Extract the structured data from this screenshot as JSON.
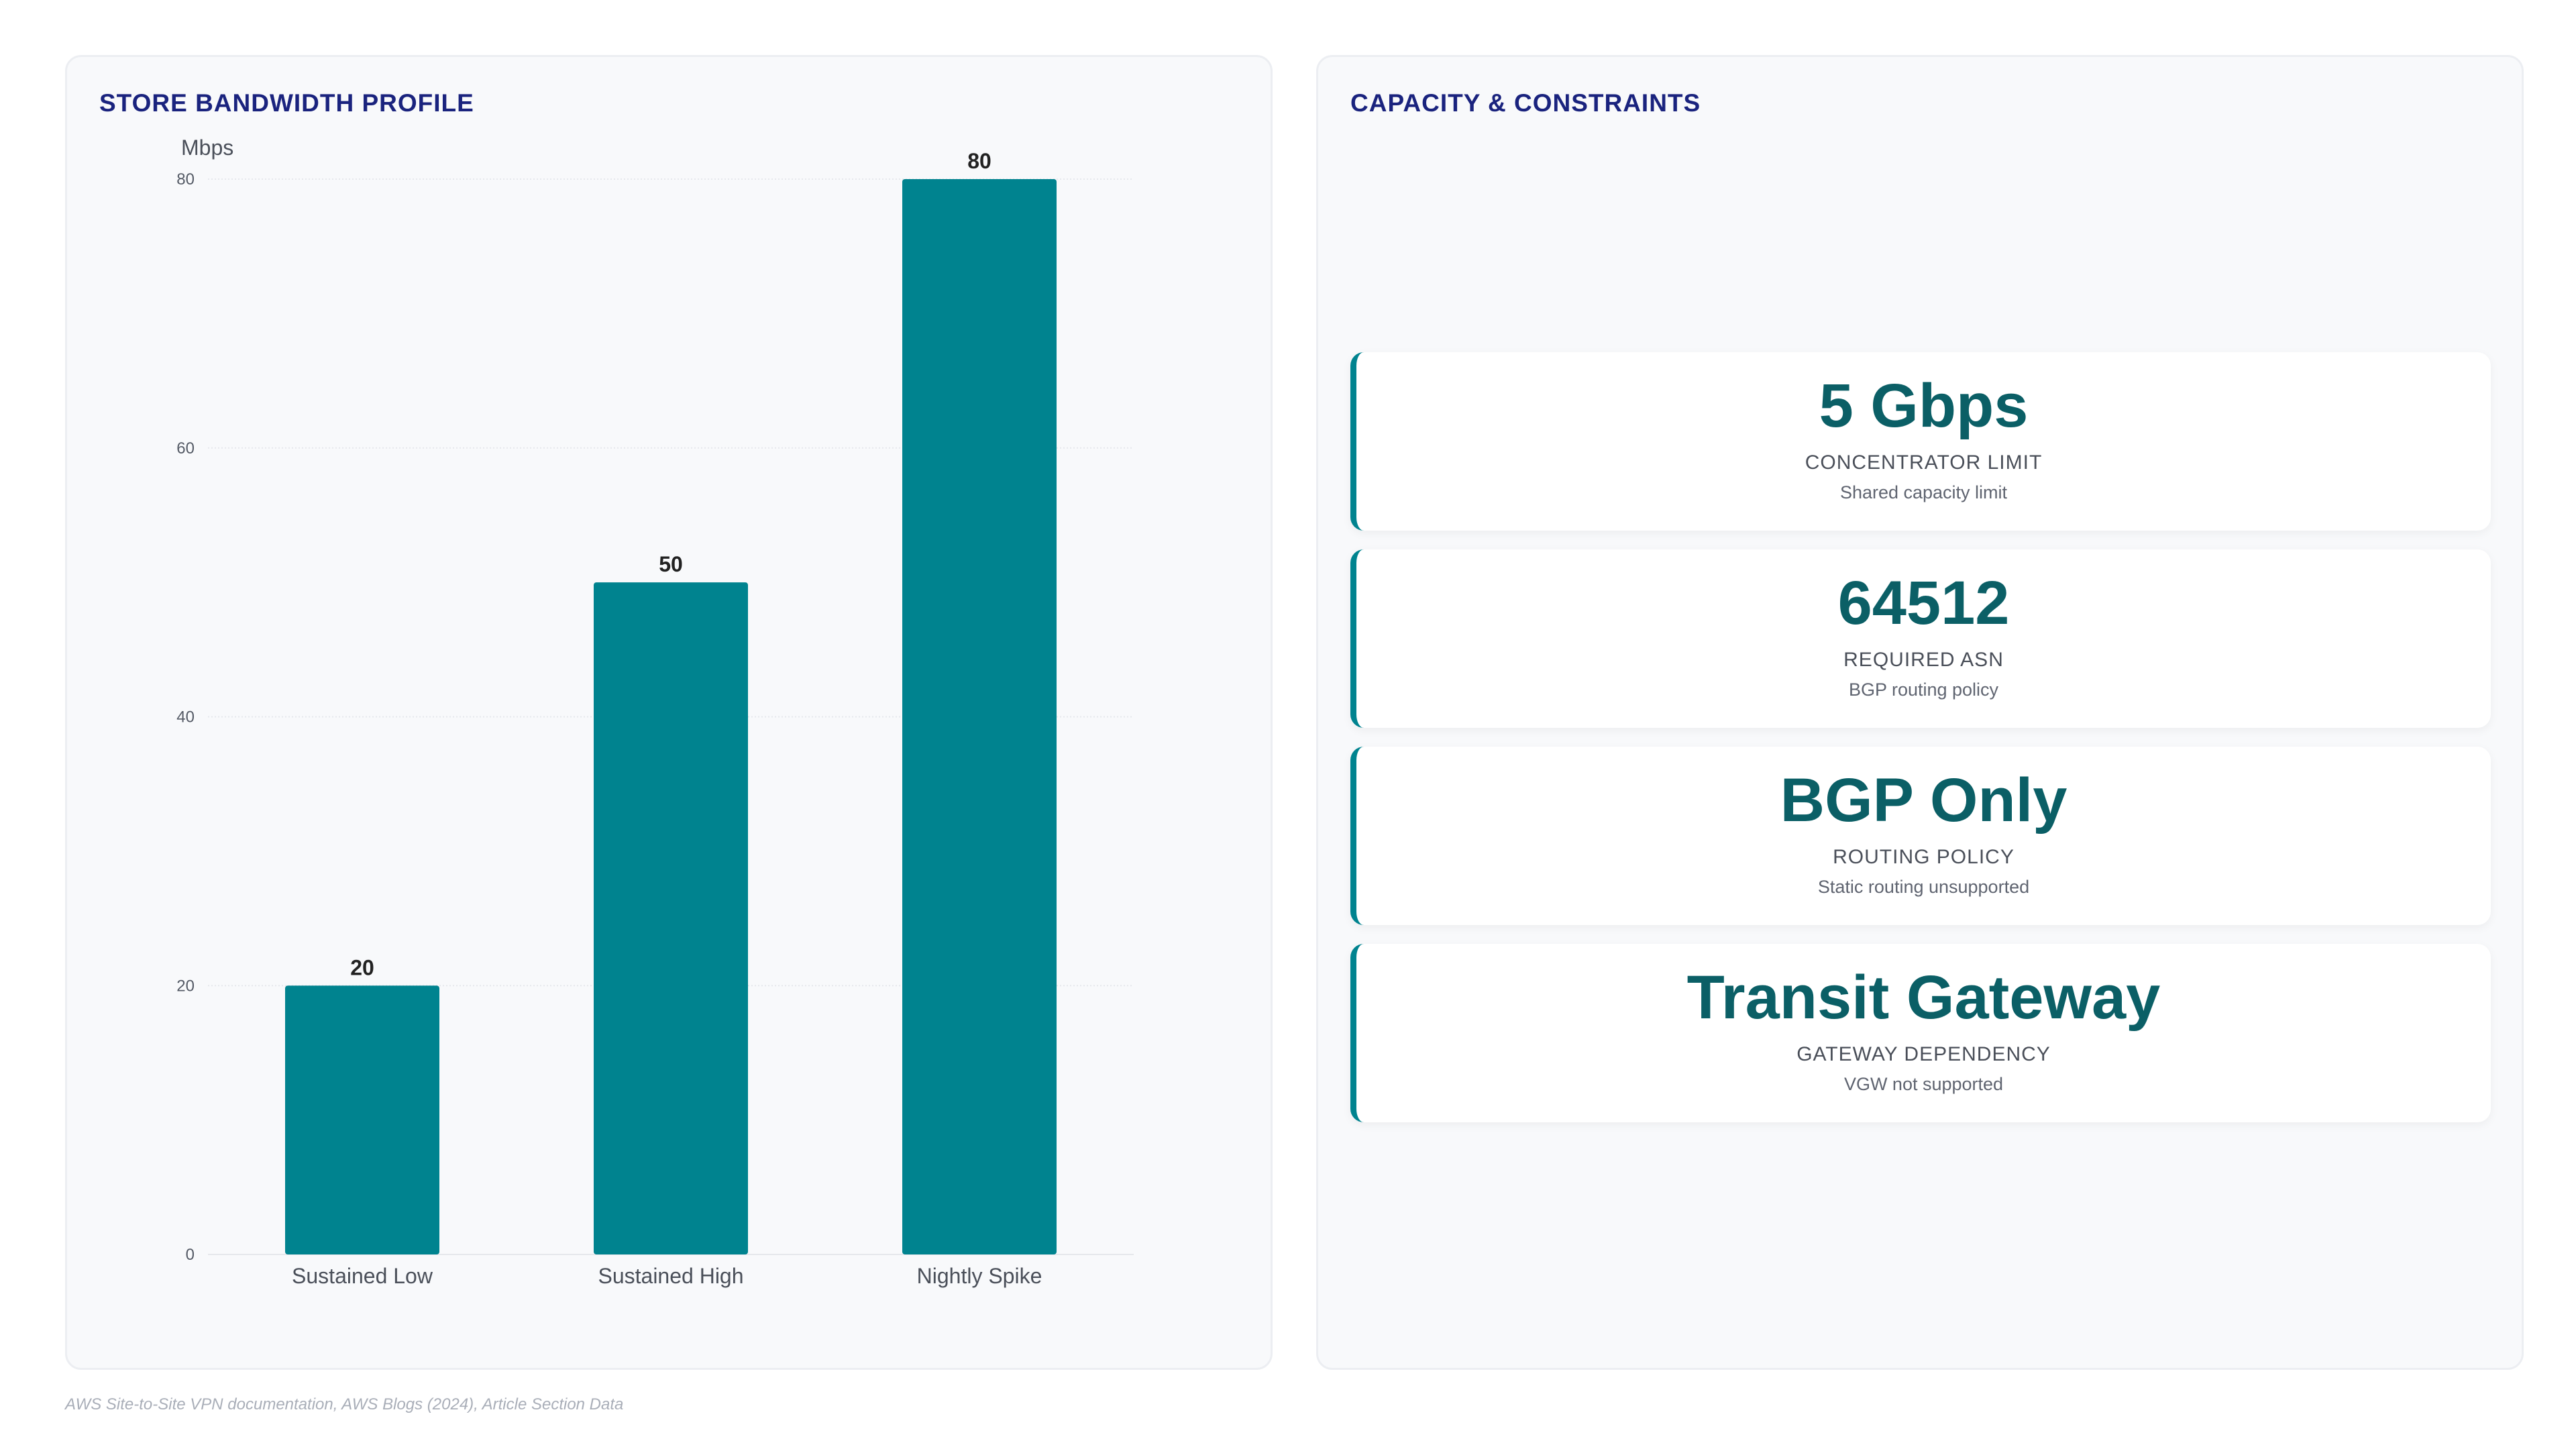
{
  "left_panel": {
    "title": "STORE BANDWIDTH PROFILE"
  },
  "right_panel": {
    "title": "CAPACITY & CONSTRAINTS",
    "cards": [
      {
        "value": "5 Gbps",
        "label": "CONCENTRATOR LIMIT",
        "sub": "Shared capacity limit"
      },
      {
        "value": "64512",
        "label": "REQUIRED ASN",
        "sub": "BGP routing policy"
      },
      {
        "value": "BGP Only",
        "label": "ROUTING POLICY",
        "sub": "Static routing unsupported"
      },
      {
        "value": "Transit Gateway",
        "label": "GATEWAY DEPENDENCY",
        "sub": "VGW not supported"
      }
    ]
  },
  "chart_data": {
    "type": "bar",
    "title": "STORE BANDWIDTH PROFILE",
    "ylabel": "Mbps",
    "xlabel": "",
    "categories": [
      "Sustained Low",
      "Sustained High",
      "Nightly Spike"
    ],
    "values": [
      20,
      50,
      80
    ],
    "ylim": [
      0,
      80
    ],
    "yticks": [
      0,
      20,
      40,
      60,
      80
    ],
    "grid": true,
    "bar_color": "#00838f"
  },
  "footer": {
    "source": "AWS Site-to-Site VPN documentation, AWS Blogs (2024), Article Section Data"
  }
}
